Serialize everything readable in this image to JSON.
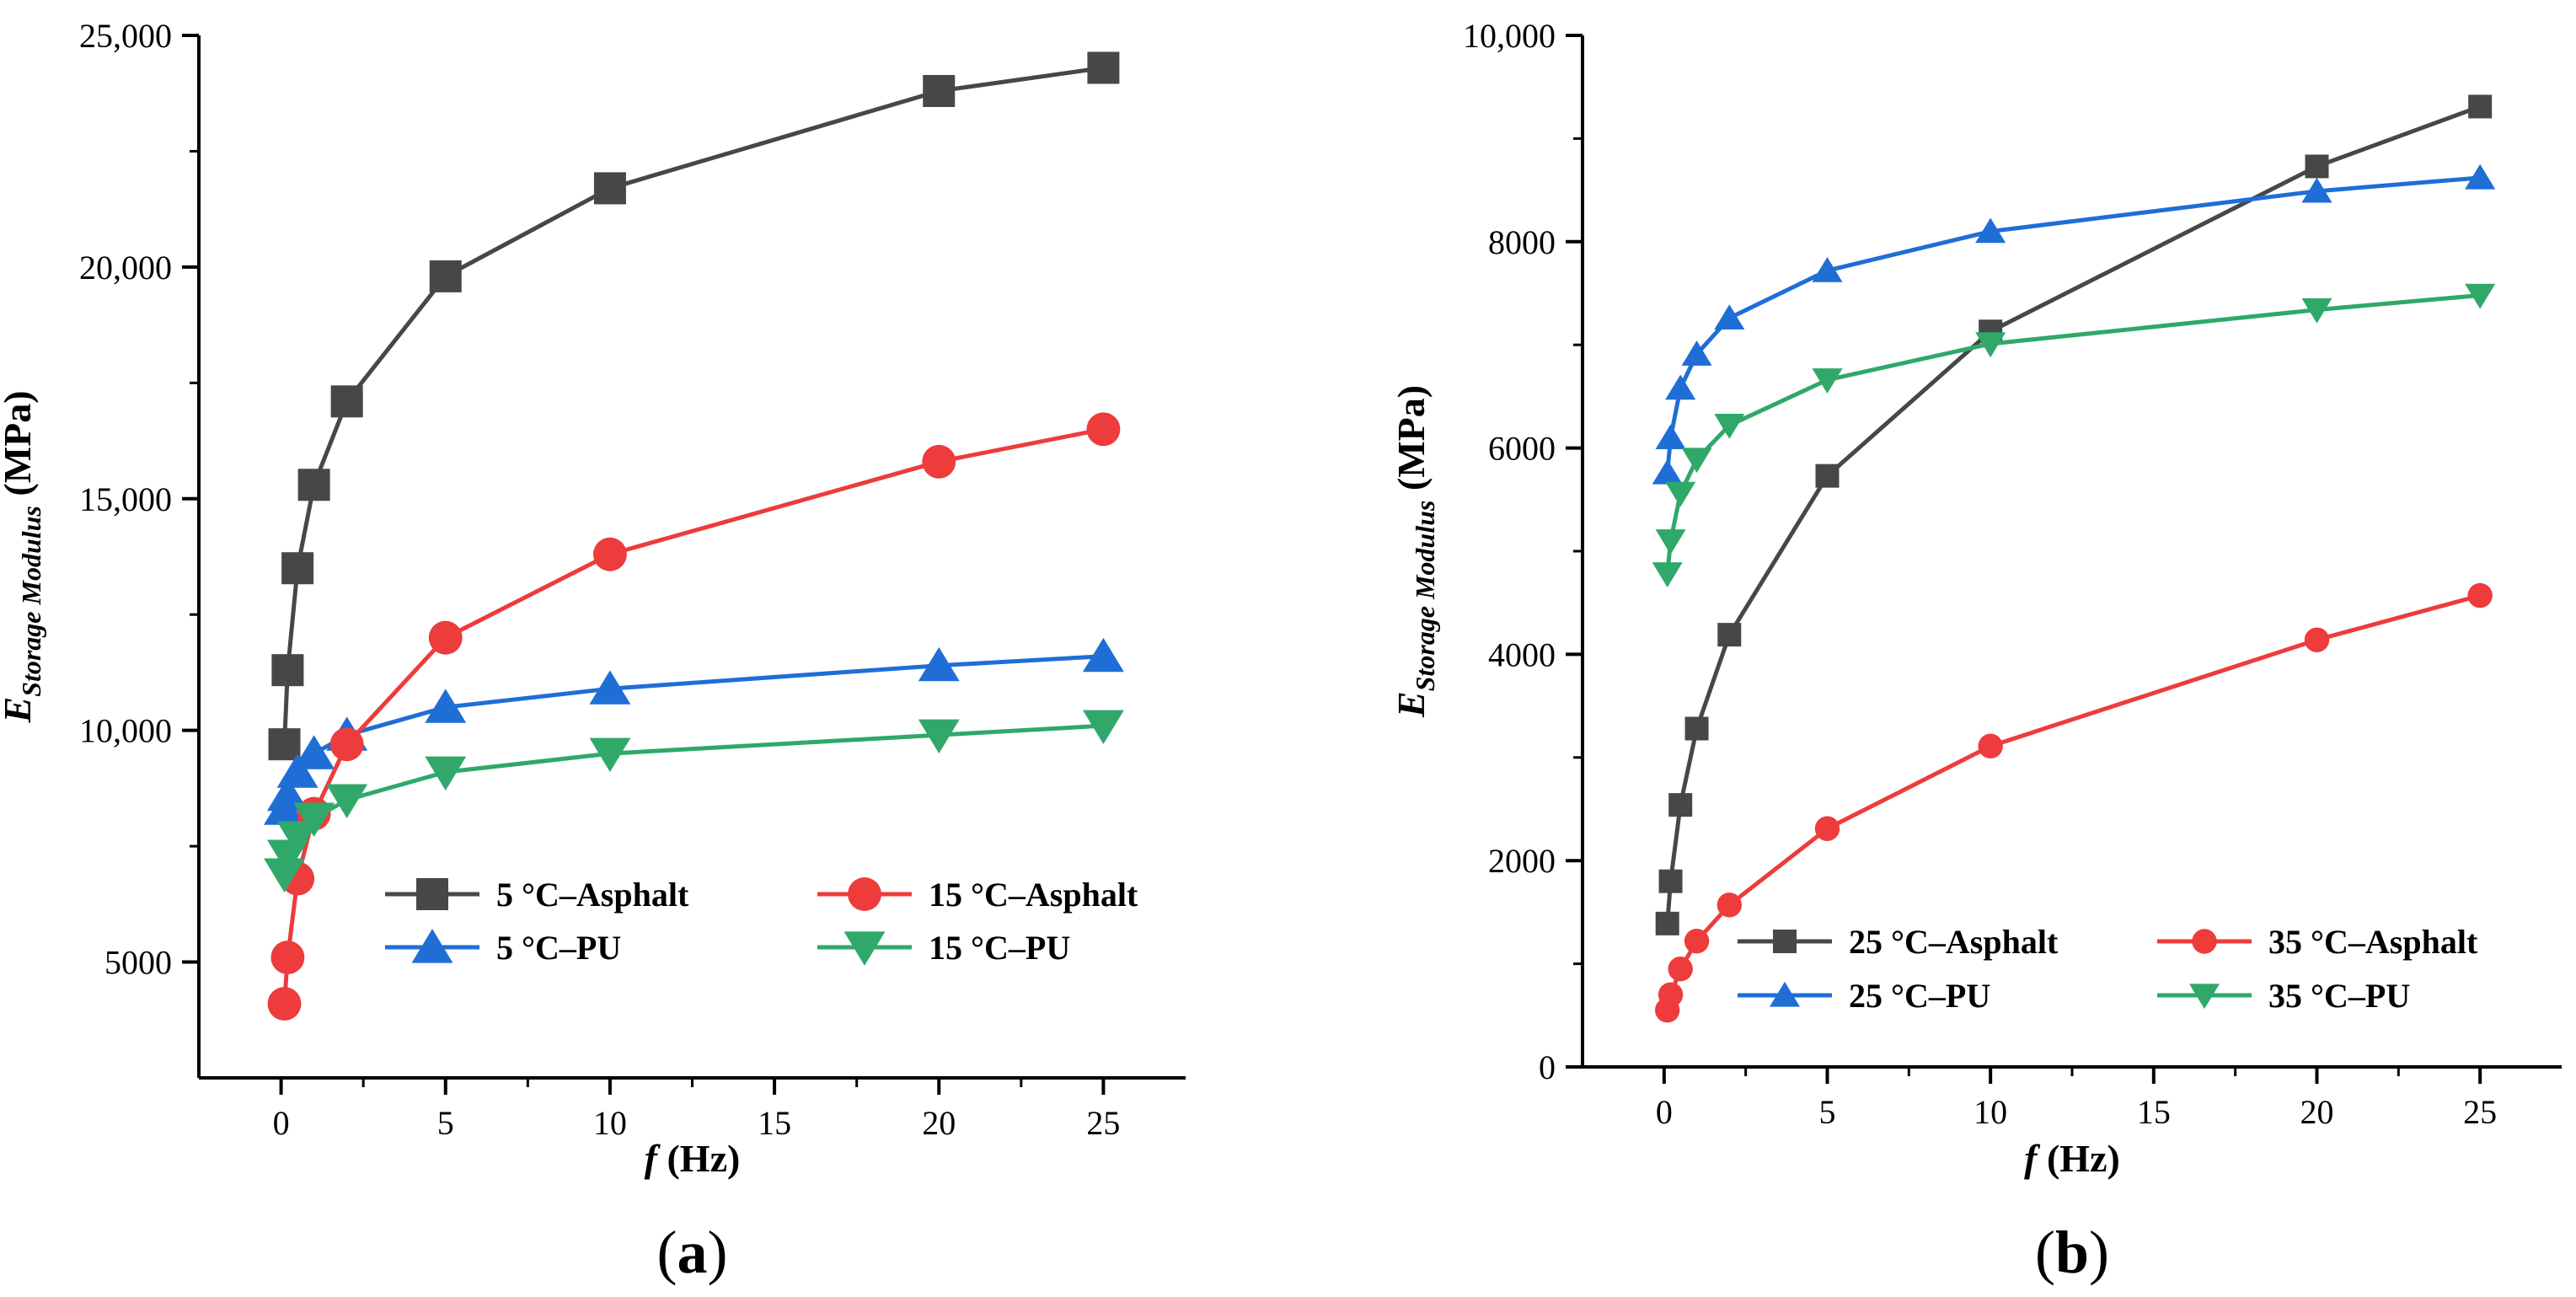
{
  "chart_data": [
    {
      "type": "line",
      "panel_label": "a",
      "xlabel_symbol": "f",
      "xlabel_unit": "(Hz)",
      "ylabel_symbol": "E",
      "ylabel_subscript": "Storage Modulus",
      "ylabel_unit": "(MPa)",
      "xlim": [
        -2.5,
        27.5
      ],
      "ylim": [
        2500,
        25000
      ],
      "x_ticks": [
        0,
        5,
        10,
        15,
        20,
        25
      ],
      "x_tick_labels": [
        "0",
        "5",
        "10",
        "15",
        "20",
        "25"
      ],
      "y_ticks": [
        5000,
        10000,
        15000,
        20000,
        25000
      ],
      "y_tick_labels": [
        "5000",
        "10,000",
        "15,000",
        "20,000",
        "25,000"
      ],
      "legend_columns": 2,
      "series": [
        {
          "name": "5 °C–Asphalt",
          "color": "#474747",
          "marker": "square",
          "x": [
            0.1,
            0.2,
            0.5,
            1,
            2,
            5,
            10,
            20,
            25
          ],
          "values": [
            9700,
            11300,
            13500,
            15300,
            17100,
            19800,
            21700,
            23800,
            24300
          ]
        },
        {
          "name": "5 °C–PU",
          "color": "#1f6ed6",
          "marker": "triangle-up",
          "x": [
            0.1,
            0.2,
            0.5,
            1,
            2,
            5,
            10,
            20,
            25
          ],
          "values": [
            8300,
            8600,
            9100,
            9500,
            9900,
            10500,
            10900,
            11400,
            11600
          ]
        },
        {
          "name": "15 °C–Asphalt",
          "color": "#ee3b3b",
          "marker": "circle",
          "x": [
            0.1,
            0.2,
            0.5,
            1,
            2,
            5,
            10,
            20,
            25
          ],
          "values": [
            4100,
            5100,
            6800,
            8200,
            9700,
            12000,
            13800,
            15800,
            16500
          ]
        },
        {
          "name": "15 °C–PU",
          "color": "#2fa86a",
          "marker": "triangle-down",
          "x": [
            0.1,
            0.2,
            0.5,
            1,
            2,
            5,
            10,
            20,
            25
          ],
          "values": [
            6900,
            7300,
            7700,
            8100,
            8500,
            9100,
            9500,
            9900,
            10100
          ]
        }
      ]
    },
    {
      "type": "line",
      "panel_label": "b",
      "xlabel_symbol": "f",
      "xlabel_unit": "(Hz)",
      "ylabel_symbol": "E",
      "ylabel_subscript": "Storage Modulus",
      "ylabel_unit": "(MPa)",
      "xlim": [
        -2.5,
        27.5
      ],
      "ylim": [
        0,
        10000
      ],
      "x_ticks": [
        0,
        5,
        10,
        15,
        20,
        25
      ],
      "x_tick_labels": [
        "0",
        "5",
        "10",
        "15",
        "20",
        "25"
      ],
      "y_ticks": [
        0,
        2000,
        4000,
        6000,
        8000,
        10000
      ],
      "y_tick_labels": [
        "0",
        "2000",
        "4000",
        "6000",
        "8000",
        "10,000"
      ],
      "legend_columns": 2,
      "series": [
        {
          "name": "25 °C–Asphalt",
          "color": "#474747",
          "marker": "square",
          "x": [
            0.1,
            0.2,
            0.5,
            1,
            2,
            5,
            10,
            20,
            25
          ],
          "values": [
            1390,
            1800,
            2540,
            3280,
            4190,
            5730,
            7130,
            8730,
            9310
          ]
        },
        {
          "name": "25 °C–PU",
          "color": "#1f6ed6",
          "marker": "triangle-up",
          "x": [
            0.1,
            0.2,
            0.5,
            1,
            2,
            5,
            10,
            20,
            25
          ],
          "values": [
            5760,
            6100,
            6580,
            6910,
            7260,
            7720,
            8100,
            8490,
            8620
          ]
        },
        {
          "name": "35 °C–Asphalt",
          "color": "#ee3b3b",
          "marker": "circle",
          "x": [
            0.1,
            0.2,
            0.5,
            1,
            2,
            5,
            10,
            20,
            25
          ],
          "values": [
            550,
            700,
            950,
            1220,
            1570,
            2310,
            3110,
            4140,
            4570
          ]
        },
        {
          "name": "35 °C–PU",
          "color": "#2fa86a",
          "marker": "triangle-down",
          "x": [
            0.1,
            0.2,
            0.5,
            1,
            2,
            5,
            10,
            20,
            25
          ],
          "values": [
            4780,
            5100,
            5560,
            5890,
            6220,
            6660,
            7010,
            7340,
            7480
          ]
        }
      ]
    }
  ]
}
